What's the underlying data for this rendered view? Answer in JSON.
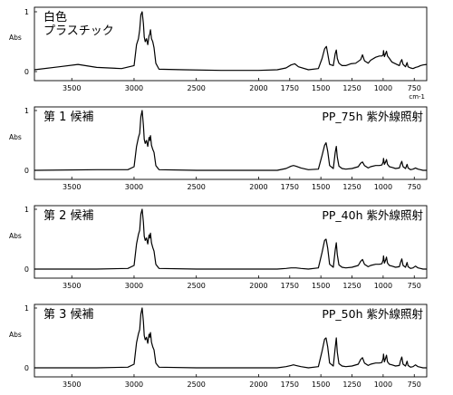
{
  "chart_data": [
    {
      "type": "line",
      "labels": [
        "白色",
        "プラスチック"
      ],
      "condition": "",
      "xlabel": "cm-1",
      "ylabel": "Abs",
      "xlim": [
        3800,
        650
      ],
      "ylim": [
        0,
        1
      ],
      "x_ticks": [
        3500,
        3000,
        2500,
        2000,
        1750,
        1500,
        1250,
        1000,
        750
      ],
      "y_ticks": [
        0,
        1
      ],
      "x": [
        3800,
        3600,
        3450,
        3300,
        3100,
        3000,
        2980,
        2965,
        2955,
        2945,
        2935,
        2925,
        2918,
        2910,
        2900,
        2890,
        2880,
        2875,
        2868,
        2860,
        2850,
        2840,
        2825,
        2800,
        2600,
        2300,
        2000,
        1850,
        1780,
        1740,
        1710,
        1680,
        1600,
        1520,
        1490,
        1470,
        1455,
        1445,
        1430,
        1400,
        1385,
        1376,
        1368,
        1355,
        1330,
        1300,
        1260,
        1220,
        1180,
        1166,
        1150,
        1120,
        1100,
        1060,
        1030,
        1010,
        1000,
        997,
        990,
        980,
        973,
        965,
        950,
        930,
        900,
        870,
        860,
        850,
        840,
        820,
        808,
        800,
        780,
        760,
        740,
        720,
        700,
        680,
        650
      ],
      "y": [
        0.03,
        0.08,
        0.12,
        0.07,
        0.05,
        0.1,
        0.45,
        0.55,
        0.7,
        0.95,
        1.0,
        0.8,
        0.58,
        0.5,
        0.55,
        0.45,
        0.6,
        0.62,
        0.7,
        0.55,
        0.5,
        0.4,
        0.14,
        0.04,
        0.03,
        0.02,
        0.02,
        0.03,
        0.06,
        0.11,
        0.13,
        0.08,
        0.03,
        0.05,
        0.22,
        0.38,
        0.42,
        0.3,
        0.12,
        0.1,
        0.3,
        0.36,
        0.22,
        0.14,
        0.1,
        0.1,
        0.13,
        0.14,
        0.2,
        0.28,
        0.18,
        0.14,
        0.19,
        0.24,
        0.26,
        0.26,
        0.28,
        0.35,
        0.25,
        0.3,
        0.34,
        0.26,
        0.22,
        0.16,
        0.13,
        0.1,
        0.16,
        0.2,
        0.12,
        0.08,
        0.15,
        0.08,
        0.06,
        0.05,
        0.07,
        0.08,
        0.1,
        0.11,
        0.12
      ]
    },
    {
      "type": "line",
      "labels": [
        "第 1 候補"
      ],
      "condition": "PP_75h 紫外線照射",
      "xlabel": "",
      "ylabel": "Abs",
      "xlim": [
        3800,
        650
      ],
      "ylim": [
        0,
        1
      ],
      "x_ticks": [
        3500,
        3000,
        2500,
        2000,
        1750,
        1500,
        1250,
        1000,
        750
      ],
      "y_ticks": [
        0,
        1
      ],
      "x": [
        3800,
        3300,
        3050,
        3000,
        2980,
        2965,
        2955,
        2945,
        2935,
        2925,
        2918,
        2910,
        2900,
        2890,
        2880,
        2875,
        2868,
        2860,
        2850,
        2840,
        2825,
        2800,
        2500,
        2000,
        1850,
        1780,
        1740,
        1720,
        1700,
        1660,
        1600,
        1520,
        1490,
        1470,
        1458,
        1445,
        1430,
        1400,
        1385,
        1376,
        1368,
        1355,
        1330,
        1300,
        1250,
        1200,
        1180,
        1166,
        1150,
        1120,
        1100,
        1060,
        1030,
        1010,
        1000,
        997,
        990,
        980,
        973,
        965,
        950,
        930,
        900,
        870,
        860,
        850,
        840,
        820,
        808,
        800,
        780,
        760,
        740,
        720,
        700,
        680,
        650
      ],
      "y": [
        0.0,
        0.01,
        0.01,
        0.06,
        0.4,
        0.55,
        0.62,
        0.9,
        1.0,
        0.75,
        0.52,
        0.45,
        0.5,
        0.4,
        0.55,
        0.5,
        0.58,
        0.42,
        0.35,
        0.3,
        0.08,
        0.01,
        0.0,
        0.0,
        0.0,
        0.03,
        0.07,
        0.08,
        0.07,
        0.04,
        0.01,
        0.02,
        0.25,
        0.42,
        0.46,
        0.32,
        0.08,
        0.03,
        0.3,
        0.4,
        0.22,
        0.07,
        0.03,
        0.02,
        0.03,
        0.06,
        0.12,
        0.14,
        0.08,
        0.04,
        0.06,
        0.08,
        0.08,
        0.09,
        0.14,
        0.2,
        0.1,
        0.14,
        0.18,
        0.1,
        0.06,
        0.05,
        0.03,
        0.04,
        0.1,
        0.15,
        0.06,
        0.03,
        0.1,
        0.04,
        0.01,
        0.02,
        0.04,
        0.02,
        0.01,
        0.0,
        0.0
      ]
    },
    {
      "type": "line",
      "labels": [
        "第 2 候補"
      ],
      "condition": "PP_40h 紫外線照射",
      "xlabel": "",
      "ylabel": "Abs",
      "xlim": [
        3800,
        650
      ],
      "ylim": [
        0,
        1
      ],
      "x_ticks": [
        3500,
        3000,
        2500,
        2000,
        1750,
        1500,
        1250,
        1000,
        750
      ],
      "y_ticks": [
        0,
        1
      ],
      "x": [
        3800,
        3300,
        3050,
        3000,
        2980,
        2965,
        2955,
        2945,
        2935,
        2925,
        2918,
        2910,
        2900,
        2890,
        2880,
        2875,
        2868,
        2860,
        2850,
        2840,
        2825,
        2800,
        2500,
        2000,
        1850,
        1780,
        1740,
        1720,
        1700,
        1660,
        1600,
        1520,
        1490,
        1470,
        1458,
        1445,
        1430,
        1400,
        1385,
        1376,
        1368,
        1355,
        1330,
        1300,
        1250,
        1200,
        1180,
        1166,
        1150,
        1120,
        1100,
        1060,
        1030,
        1010,
        1000,
        997,
        990,
        980,
        973,
        965,
        950,
        930,
        900,
        870,
        860,
        850,
        840,
        820,
        808,
        800,
        780,
        760,
        740,
        720,
        700,
        680,
        650
      ],
      "y": [
        0.0,
        0.0,
        0.01,
        0.06,
        0.42,
        0.58,
        0.65,
        0.92,
        1.0,
        0.78,
        0.55,
        0.48,
        0.52,
        0.42,
        0.57,
        0.52,
        0.6,
        0.44,
        0.36,
        0.3,
        0.08,
        0.01,
        0.0,
        0.0,
        0.0,
        0.01,
        0.02,
        0.02,
        0.02,
        0.01,
        0.0,
        0.02,
        0.28,
        0.48,
        0.5,
        0.35,
        0.08,
        0.03,
        0.32,
        0.44,
        0.24,
        0.07,
        0.03,
        0.02,
        0.03,
        0.06,
        0.13,
        0.16,
        0.08,
        0.04,
        0.06,
        0.08,
        0.08,
        0.09,
        0.15,
        0.22,
        0.1,
        0.15,
        0.2,
        0.1,
        0.06,
        0.05,
        0.03,
        0.04,
        0.11,
        0.17,
        0.06,
        0.03,
        0.11,
        0.04,
        0.01,
        0.02,
        0.05,
        0.02,
        0.01,
        0.0,
        0.0
      ]
    },
    {
      "type": "line",
      "labels": [
        "第 3 候補"
      ],
      "condition": "PP_50h 紫外線照射",
      "xlabel": "",
      "ylabel": "Abs",
      "xlim": [
        3800,
        650
      ],
      "ylim": [
        0,
        1
      ],
      "x_ticks": [
        3500,
        3000,
        2500,
        2000,
        1750,
        1500,
        1250,
        1000,
        750
      ],
      "y_ticks": [
        0,
        1
      ],
      "x": [
        3800,
        3300,
        3050,
        3000,
        2980,
        2965,
        2955,
        2945,
        2935,
        2925,
        2918,
        2910,
        2900,
        2890,
        2880,
        2875,
        2868,
        2860,
        2850,
        2840,
        2825,
        2800,
        2500,
        2000,
        1850,
        1780,
        1740,
        1720,
        1700,
        1660,
        1600,
        1520,
        1490,
        1470,
        1458,
        1445,
        1430,
        1400,
        1385,
        1376,
        1368,
        1355,
        1330,
        1300,
        1250,
        1200,
        1180,
        1166,
        1150,
        1120,
        1100,
        1060,
        1030,
        1010,
        1000,
        997,
        990,
        980,
        973,
        965,
        950,
        930,
        900,
        870,
        860,
        850,
        840,
        820,
        808,
        800,
        780,
        760,
        740,
        720,
        700,
        680,
        650
      ],
      "y": [
        0.0,
        0.0,
        0.01,
        0.06,
        0.42,
        0.57,
        0.64,
        0.9,
        1.0,
        0.77,
        0.54,
        0.47,
        0.51,
        0.41,
        0.56,
        0.51,
        0.59,
        0.43,
        0.35,
        0.3,
        0.08,
        0.01,
        0.0,
        0.0,
        0.0,
        0.02,
        0.04,
        0.05,
        0.04,
        0.02,
        0.0,
        0.02,
        0.28,
        0.48,
        0.5,
        0.35,
        0.08,
        0.03,
        0.34,
        0.5,
        0.26,
        0.07,
        0.03,
        0.02,
        0.03,
        0.06,
        0.14,
        0.17,
        0.08,
        0.04,
        0.06,
        0.08,
        0.08,
        0.09,
        0.16,
        0.23,
        0.1,
        0.16,
        0.21,
        0.1,
        0.06,
        0.05,
        0.03,
        0.04,
        0.12,
        0.18,
        0.06,
        0.03,
        0.11,
        0.04,
        0.01,
        0.02,
        0.05,
        0.02,
        0.01,
        0.0,
        0.0
      ]
    }
  ]
}
